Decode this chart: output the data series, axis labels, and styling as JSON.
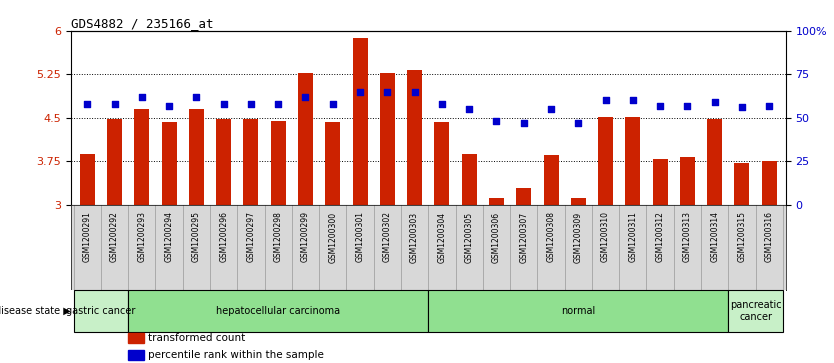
{
  "title": "GDS4882 / 235166_at",
  "samples": [
    "GSM1200291",
    "GSM1200292",
    "GSM1200293",
    "GSM1200294",
    "GSM1200295",
    "GSM1200296",
    "GSM1200297",
    "GSM1200298",
    "GSM1200299",
    "GSM1200300",
    "GSM1200301",
    "GSM1200302",
    "GSM1200303",
    "GSM1200304",
    "GSM1200305",
    "GSM1200306",
    "GSM1200307",
    "GSM1200308",
    "GSM1200309",
    "GSM1200310",
    "GSM1200311",
    "GSM1200312",
    "GSM1200313",
    "GSM1200314",
    "GSM1200315",
    "GSM1200316"
  ],
  "bar_values": [
    3.88,
    4.47,
    4.65,
    4.42,
    4.65,
    4.47,
    4.47,
    4.45,
    5.28,
    4.42,
    5.88,
    5.28,
    5.32,
    4.42,
    3.87,
    3.12,
    3.28,
    3.85,
    3.12,
    4.52,
    4.52,
    3.78,
    3.82,
    4.48,
    3.72,
    3.75
  ],
  "percentile_values": [
    58,
    58,
    62,
    57,
    62,
    58,
    58,
    58,
    62,
    58,
    65,
    65,
    65,
    58,
    55,
    48,
    47,
    55,
    47,
    60,
    60,
    57,
    57,
    59,
    56,
    57
  ],
  "disease_groups": [
    {
      "label": "gastric cancer",
      "start": 0,
      "end": 2,
      "color": "#c8f0c8"
    },
    {
      "label": "hepatocellular carcinoma",
      "start": 2,
      "end": 13,
      "color": "#90e090"
    },
    {
      "label": "normal",
      "start": 13,
      "end": 24,
      "color": "#90e090"
    },
    {
      "label": "pancreatic\ncancer",
      "start": 24,
      "end": 26,
      "color": "#c8f0c8"
    }
  ],
  "ylim_left": [
    3,
    6
  ],
  "ylim_right": [
    0,
    100
  ],
  "yticks_left": [
    3,
    3.75,
    4.5,
    5.25,
    6
  ],
  "ytick_labels_left": [
    "3",
    "3.75",
    "4.5",
    "5.25",
    "6"
  ],
  "yticks_right": [
    0,
    25,
    50,
    75,
    100
  ],
  "ytick_labels_right": [
    "0",
    "25",
    "50",
    "75",
    "100%"
  ],
  "bar_color": "#cc2200",
  "dot_color": "#0000cc",
  "bg_color": "#ffffff",
  "xtick_bg_color": "#d8d8d8",
  "disease_group_border_color": "#000000",
  "legend_items": [
    {
      "color": "#cc2200",
      "label": "transformed count"
    },
    {
      "color": "#0000cc",
      "label": "percentile rank within the sample"
    }
  ]
}
